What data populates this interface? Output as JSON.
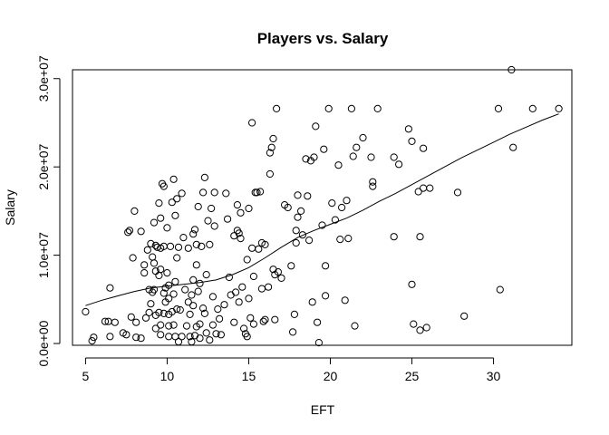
{
  "chart_data": {
    "type": "scatter",
    "title": "Players vs. Salary",
    "xlabel": "EFT",
    "ylabel": "Salary",
    "xlim": [
      4.2,
      34.8
    ],
    "ylim": [
      -200000,
      31000000
    ],
    "x_ticks": [
      5,
      10,
      15,
      20,
      25,
      30
    ],
    "x_tick_labels": [
      "5",
      "10",
      "15",
      "20",
      "25",
      "30"
    ],
    "y_ticks": [
      0,
      10000000,
      20000000,
      30000000
    ],
    "y_tick_labels": [
      "0.0e+00",
      "1.0e+07",
      "2.0e+07",
      "3.0e+07"
    ],
    "grid": false,
    "points": [
      [
        5.0,
        3600000
      ],
      [
        5.4,
        300000
      ],
      [
        5.5,
        700000
      ],
      [
        6.2,
        2500000
      ],
      [
        6.4,
        2500000
      ],
      [
        6.5,
        6300000
      ],
      [
        6.5,
        800000
      ],
      [
        6.8,
        2400000
      ],
      [
        7.3,
        1200000
      ],
      [
        7.5,
        1000000
      ],
      [
        7.6,
        12600000
      ],
      [
        7.7,
        12800000
      ],
      [
        7.8,
        3000000
      ],
      [
        7.9,
        9700000
      ],
      [
        8.0,
        15000000
      ],
      [
        8.1,
        2400000
      ],
      [
        8.1,
        700000
      ],
      [
        8.4,
        12700000
      ],
      [
        8.4,
        600000
      ],
      [
        8.6,
        8900000
      ],
      [
        8.6,
        8000000
      ],
      [
        8.7,
        2900000
      ],
      [
        8.8,
        10600000
      ],
      [
        8.9,
        6100000
      ],
      [
        8.9,
        3500000
      ],
      [
        9.0,
        11300000
      ],
      [
        9.0,
        4500000
      ],
      [
        9.1,
        9800000
      ],
      [
        9.1,
        5800000
      ],
      [
        9.2,
        13700000
      ],
      [
        9.2,
        9100000
      ],
      [
        9.2,
        6100000
      ],
      [
        9.3,
        11100000
      ],
      [
        9.3,
        8200000
      ],
      [
        9.3,
        3200000
      ],
      [
        9.3,
        1700000
      ],
      [
        9.4,
        10900000
      ],
      [
        9.5,
        15900000
      ],
      [
        9.5,
        7700000
      ],
      [
        9.5,
        3500000
      ],
      [
        9.6,
        14200000
      ],
      [
        9.6,
        10800000
      ],
      [
        9.6,
        8400000
      ],
      [
        9.6,
        2100000
      ],
      [
        9.6,
        1000000
      ],
      [
        9.7,
        18100000
      ],
      [
        9.8,
        17800000
      ],
      [
        9.8,
        11000000
      ],
      [
        9.8,
        5700000
      ],
      [
        9.8,
        3400000
      ],
      [
        9.9,
        6300000
      ],
      [
        9.9,
        4700000
      ],
      [
        10.0,
        13100000
      ],
      [
        10.0,
        8000000
      ],
      [
        10.1,
        6600000
      ],
      [
        10.1,
        5100000
      ],
      [
        10.1,
        3300000
      ],
      [
        10.1,
        2000000
      ],
      [
        10.1,
        800000
      ],
      [
        10.2,
        11000000
      ],
      [
        10.3,
        16000000
      ],
      [
        10.3,
        3600000
      ],
      [
        10.4,
        18600000
      ],
      [
        10.4,
        5600000
      ],
      [
        10.4,
        2100000
      ],
      [
        10.5,
        14500000
      ],
      [
        10.5,
        7000000
      ],
      [
        10.5,
        800000
      ],
      [
        10.6,
        16400000
      ],
      [
        10.6,
        9700000
      ],
      [
        10.6,
        3900000
      ],
      [
        10.7,
        10900000
      ],
      [
        10.7,
        200000
      ],
      [
        10.8,
        3800000
      ],
      [
        10.9,
        17000000
      ],
      [
        10.9,
        800000
      ],
      [
        11.0,
        12000000
      ],
      [
        11.1,
        6100000
      ],
      [
        11.2,
        2000000
      ],
      [
        11.3,
        10800000
      ],
      [
        11.3,
        4700000
      ],
      [
        11.4,
        3300000
      ],
      [
        11.4,
        800000
      ],
      [
        11.5,
        5500000
      ],
      [
        11.5,
        200000
      ],
      [
        11.6,
        12400000
      ],
      [
        11.6,
        7200000
      ],
      [
        11.6,
        4300000
      ],
      [
        11.7,
        12900000
      ],
      [
        11.7,
        900000
      ],
      [
        11.8,
        11200000
      ],
      [
        11.8,
        8900000
      ],
      [
        11.8,
        1900000
      ],
      [
        11.9,
        15500000
      ],
      [
        11.9,
        5900000
      ],
      [
        12.0,
        6800000
      ],
      [
        12.0,
        2200000
      ],
      [
        12.0,
        600000
      ],
      [
        12.1,
        11000000
      ],
      [
        12.2,
        17100000
      ],
      [
        12.2,
        4000000
      ],
      [
        12.3,
        18800000
      ],
      [
        12.3,
        3400000
      ],
      [
        12.4,
        7800000
      ],
      [
        12.4,
        1200000
      ],
      [
        12.5,
        13900000
      ],
      [
        12.6,
        11200000
      ],
      [
        12.6,
        400000
      ],
      [
        12.7,
        15300000
      ],
      [
        12.8,
        5300000
      ],
      [
        12.8,
        2100000
      ],
      [
        12.9,
        17100000
      ],
      [
        12.9,
        13300000
      ],
      [
        13.0,
        1100000
      ],
      [
        13.1,
        3900000
      ],
      [
        13.2,
        2800000
      ],
      [
        13.3,
        1000000
      ],
      [
        13.5,
        4400000
      ],
      [
        13.6,
        17000000
      ],
      [
        13.7,
        14100000
      ],
      [
        13.8,
        7500000
      ],
      [
        13.9,
        5500000
      ],
      [
        14.1,
        12200000
      ],
      [
        14.1,
        2400000
      ],
      [
        14.2,
        5800000
      ],
      [
        14.3,
        15700000
      ],
      [
        14.3,
        12800000
      ],
      [
        14.4,
        12500000
      ],
      [
        14.4,
        4700000
      ],
      [
        14.5,
        14800000
      ],
      [
        14.5,
        11900000
      ],
      [
        14.6,
        6400000
      ],
      [
        14.7,
        1700000
      ],
      [
        14.8,
        1100000
      ],
      [
        14.9,
        9500000
      ],
      [
        14.9,
        800000
      ],
      [
        15.0,
        15300000
      ],
      [
        15.0,
        5100000
      ],
      [
        15.1,
        2900000
      ],
      [
        15.2,
        25000000
      ],
      [
        15.2,
        10800000
      ],
      [
        15.3,
        7600000
      ],
      [
        15.3,
        2200000
      ],
      [
        15.4,
        17100000
      ],
      [
        15.5,
        17100000
      ],
      [
        15.6,
        10700000
      ],
      [
        15.7,
        17200000
      ],
      [
        15.8,
        11400000
      ],
      [
        15.8,
        6200000
      ],
      [
        15.9,
        2500000
      ],
      [
        16.0,
        11200000
      ],
      [
        16.0,
        2700000
      ],
      [
        16.2,
        6400000
      ],
      [
        16.3,
        21600000
      ],
      [
        16.3,
        19200000
      ],
      [
        16.4,
        22200000
      ],
      [
        16.5,
        23200000
      ],
      [
        16.5,
        8400000
      ],
      [
        16.6,
        7800000
      ],
      [
        16.6,
        2700000
      ],
      [
        16.7,
        26600000
      ],
      [
        16.8,
        8100000
      ],
      [
        17.0,
        7400000
      ],
      [
        17.2,
        15700000
      ],
      [
        17.4,
        15400000
      ],
      [
        17.6,
        8800000
      ],
      [
        17.7,
        1300000
      ],
      [
        17.8,
        3300000
      ],
      [
        17.9,
        12800000
      ],
      [
        17.9,
        11400000
      ],
      [
        18.0,
        16800000
      ],
      [
        18.0,
        14300000
      ],
      [
        18.2,
        15000000
      ],
      [
        18.3,
        12300000
      ],
      [
        18.5,
        20900000
      ],
      [
        18.6,
        16700000
      ],
      [
        18.7,
        11700000
      ],
      [
        18.8,
        20700000
      ],
      [
        18.9,
        4700000
      ],
      [
        19.0,
        21100000
      ],
      [
        19.1,
        24600000
      ],
      [
        19.2,
        2400000
      ],
      [
        19.3,
        100000
      ],
      [
        19.5,
        13400000
      ],
      [
        19.6,
        22000000
      ],
      [
        19.7,
        8800000
      ],
      [
        19.7,
        5400000
      ],
      [
        19.9,
        26600000
      ],
      [
        20.1,
        15900000
      ],
      [
        20.3,
        14000000
      ],
      [
        20.5,
        20200000
      ],
      [
        20.6,
        11800000
      ],
      [
        20.7,
        15400000
      ],
      [
        20.9,
        4900000
      ],
      [
        21.0,
        16200000
      ],
      [
        21.1,
        11900000
      ],
      [
        21.3,
        26600000
      ],
      [
        21.4,
        21200000
      ],
      [
        21.5,
        2000000
      ],
      [
        21.6,
        22200000
      ],
      [
        22.0,
        23300000
      ],
      [
        22.5,
        21100000
      ],
      [
        22.6,
        18300000
      ],
      [
        22.6,
        17800000
      ],
      [
        22.9,
        26600000
      ],
      [
        23.9,
        21100000
      ],
      [
        23.9,
        12100000
      ],
      [
        24.2,
        20300000
      ],
      [
        24.8,
        24300000
      ],
      [
        25.0,
        22900000
      ],
      [
        25.0,
        6700000
      ],
      [
        25.1,
        2200000
      ],
      [
        25.4,
        17200000
      ],
      [
        25.5,
        12100000
      ],
      [
        25.5,
        1500000
      ],
      [
        25.7,
        17600000
      ],
      [
        25.7,
        22100000
      ],
      [
        25.9,
        1800000
      ],
      [
        26.1,
        17600000
      ],
      [
        27.8,
        17100000
      ],
      [
        28.2,
        3100000
      ],
      [
        30.3,
        26600000
      ],
      [
        30.4,
        6100000
      ],
      [
        31.1,
        31000000
      ],
      [
        31.2,
        22200000
      ],
      [
        32.4,
        26600000
      ],
      [
        34.0,
        26600000
      ]
    ],
    "smooth_line": [
      [
        5.0,
        4300000
      ],
      [
        6.0,
        4900000
      ],
      [
        7.0,
        5400000
      ],
      [
        8.0,
        5900000
      ],
      [
        9.0,
        6300000
      ],
      [
        10.0,
        6500000
      ],
      [
        11.0,
        6700000
      ],
      [
        12.0,
        6900000
      ],
      [
        13.0,
        7200000
      ],
      [
        14.0,
        7800000
      ],
      [
        15.0,
        8600000
      ],
      [
        16.0,
        9700000
      ],
      [
        17.0,
        10900000
      ],
      [
        18.0,
        12000000
      ],
      [
        19.0,
        12800000
      ],
      [
        20.0,
        13500000
      ],
      [
        21.0,
        14200000
      ],
      [
        22.0,
        15100000
      ],
      [
        23.0,
        16100000
      ],
      [
        24.0,
        17000000
      ],
      [
        25.0,
        18000000
      ],
      [
        26.0,
        19000000
      ],
      [
        27.0,
        20000000
      ],
      [
        28.0,
        21000000
      ],
      [
        29.0,
        21900000
      ],
      [
        30.0,
        22800000
      ],
      [
        31.0,
        23700000
      ],
      [
        32.0,
        24500000
      ],
      [
        33.0,
        25300000
      ],
      [
        34.0,
        26000000
      ]
    ]
  }
}
